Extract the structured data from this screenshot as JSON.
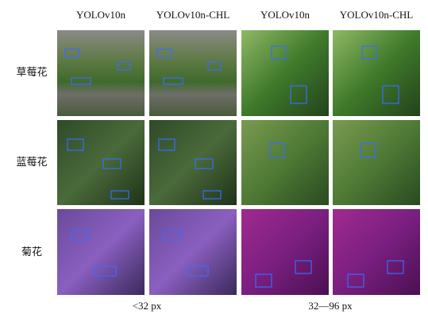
{
  "columns": [
    "YOLOv10n",
    "YOLOv10n-CHL",
    "YOLOv10n",
    "YOLOv10n-CHL"
  ],
  "rows": [
    "草莓花",
    "蓝莓花",
    "菊花"
  ],
  "size_groups": [
    "<32 px",
    "32—96 px"
  ]
}
